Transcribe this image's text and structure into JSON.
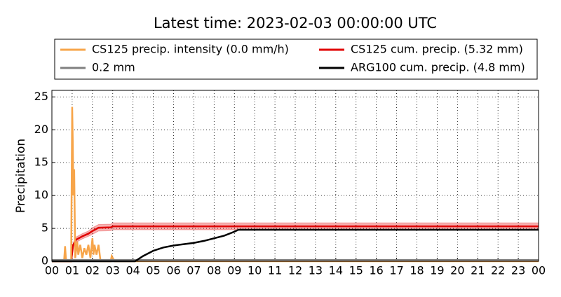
{
  "chart_data": {
    "type": "line",
    "title": "Latest time: 2023-02-03 00:00:00 UTC",
    "ylabel": "Precipitation",
    "xlim": [
      0,
      24
    ],
    "ylim": [
      0,
      26
    ],
    "xticks": [
      {
        "value": 0,
        "label": "00"
      },
      {
        "value": 1,
        "label": "01"
      },
      {
        "value": 2,
        "label": "02"
      },
      {
        "value": 3,
        "label": "03"
      },
      {
        "value": 4,
        "label": "04"
      },
      {
        "value": 5,
        "label": "05"
      },
      {
        "value": 6,
        "label": "06"
      },
      {
        "value": 7,
        "label": "07"
      },
      {
        "value": 8,
        "label": "08"
      },
      {
        "value": 9,
        "label": "09"
      },
      {
        "value": 10,
        "label": "10"
      },
      {
        "value": 11,
        "label": "11"
      },
      {
        "value": 12,
        "label": "12"
      },
      {
        "value": 13,
        "label": "13"
      },
      {
        "value": 14,
        "label": "14"
      },
      {
        "value": 15,
        "label": "15"
      },
      {
        "value": 16,
        "label": "16"
      },
      {
        "value": 17,
        "label": "17"
      },
      {
        "value": 18,
        "label": "18"
      },
      {
        "value": 19,
        "label": "19"
      },
      {
        "value": 20,
        "label": "20"
      },
      {
        "value": 21,
        "label": "21"
      },
      {
        "value": 22,
        "label": "22"
      },
      {
        "value": 23,
        "label": "23"
      },
      {
        "value": 24,
        "label": "00"
      }
    ],
    "yticks": [
      0,
      5,
      10,
      15,
      20,
      25
    ],
    "grid": true,
    "series": [
      {
        "name": "CS125 precip. intensity (0.0 mm/h)",
        "color": "#f7a54a",
        "x": [
          0,
          0.6,
          0.65,
          0.7,
          0.95,
          1.0,
          1.03,
          1.06,
          1.1,
          1.15,
          1.25,
          1.3,
          1.4,
          1.5,
          1.6,
          1.7,
          1.8,
          1.9,
          2.0,
          2.05,
          2.1,
          2.2,
          2.3,
          2.4,
          2.9,
          2.95,
          3.0,
          3.1,
          24
        ],
        "values": [
          0,
          0,
          2.3,
          0,
          0,
          23.5,
          18,
          10,
          14,
          0.5,
          3,
          1,
          2.5,
          0.5,
          2,
          1,
          2.5,
          0.5,
          3.5,
          1,
          2.5,
          1,
          2.5,
          0,
          0,
          0.8,
          0.5,
          0,
          0
        ]
      },
      {
        "name": "0.2 mm",
        "color": "#808080",
        "x": [
          0,
          24
        ],
        "values": [
          0.2,
          0.2
        ]
      },
      {
        "name": "CS125 cum. precip. (5.32 mm)",
        "color": "#e00000",
        "x": [
          0,
          0.95,
          1.05,
          1.2,
          1.5,
          1.8,
          2.0,
          2.3,
          2.9,
          3.0,
          24
        ],
        "values": [
          0,
          0,
          2.5,
          3.3,
          3.8,
          4.2,
          4.6,
          5.1,
          5.15,
          5.32,
          5.32
        ],
        "band_lower": [
          0,
          0,
          2.2,
          2.9,
          3.4,
          3.8,
          4.1,
          4.6,
          4.65,
          4.8,
          4.8
        ],
        "band_upper": [
          0,
          0,
          2.8,
          3.7,
          4.2,
          4.6,
          5.1,
          5.6,
          5.65,
          5.85,
          5.85
        ]
      },
      {
        "name": "ARG100 cum. precip. (4.8 mm)",
        "color": "#000000",
        "x": [
          0,
          4.1,
          4.5,
          5,
          5.5,
          6,
          6.5,
          7,
          7.5,
          8,
          8.5,
          9,
          9.2,
          24
        ],
        "values": [
          0,
          0,
          0.8,
          1.6,
          2.1,
          2.4,
          2.6,
          2.8,
          3.1,
          3.5,
          3.9,
          4.5,
          4.8,
          4.8
        ]
      }
    ]
  }
}
